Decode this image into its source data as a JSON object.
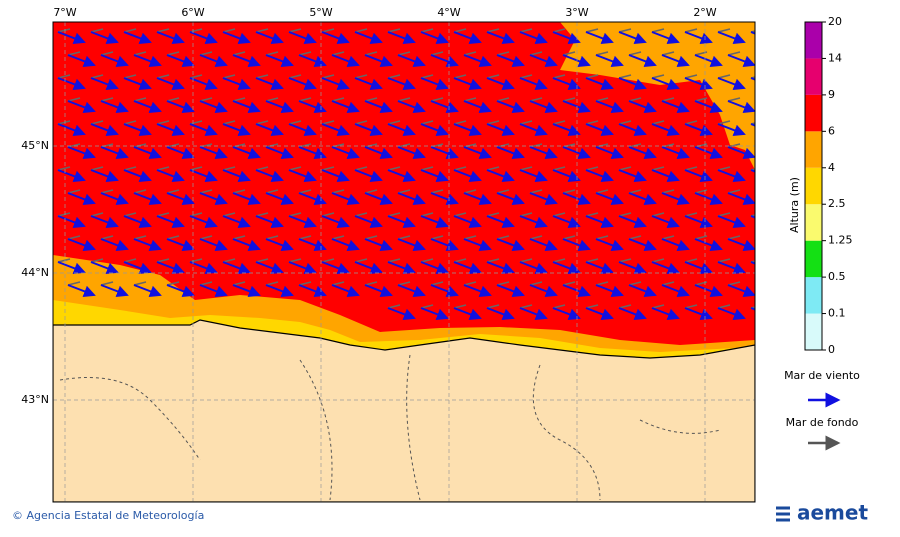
{
  "map": {
    "lon_labels": [
      "7°W",
      "6°W",
      "5°W",
      "4°W",
      "3°W",
      "2°W"
    ],
    "lat_labels": [
      "45°N",
      "44°N",
      "43°N"
    ]
  },
  "colorbar": {
    "label": "Altura (m)",
    "ticks": [
      0,
      0.1,
      0.5,
      1.25,
      2.5,
      4,
      6,
      9,
      14,
      20
    ],
    "colors": [
      "#d8fafa",
      "#7eeaf4",
      "#14e014",
      "#fafa6e",
      "#ffd700",
      "#ffa500",
      "#ff0000",
      "#e6006e",
      "#aa00aa"
    ]
  },
  "legend": {
    "wind_sea": "Mar de viento",
    "swell": "Mar de fondo"
  },
  "footer": {
    "credit": "© Agencia Estatal de Meteorología",
    "logo": "aemet"
  }
}
